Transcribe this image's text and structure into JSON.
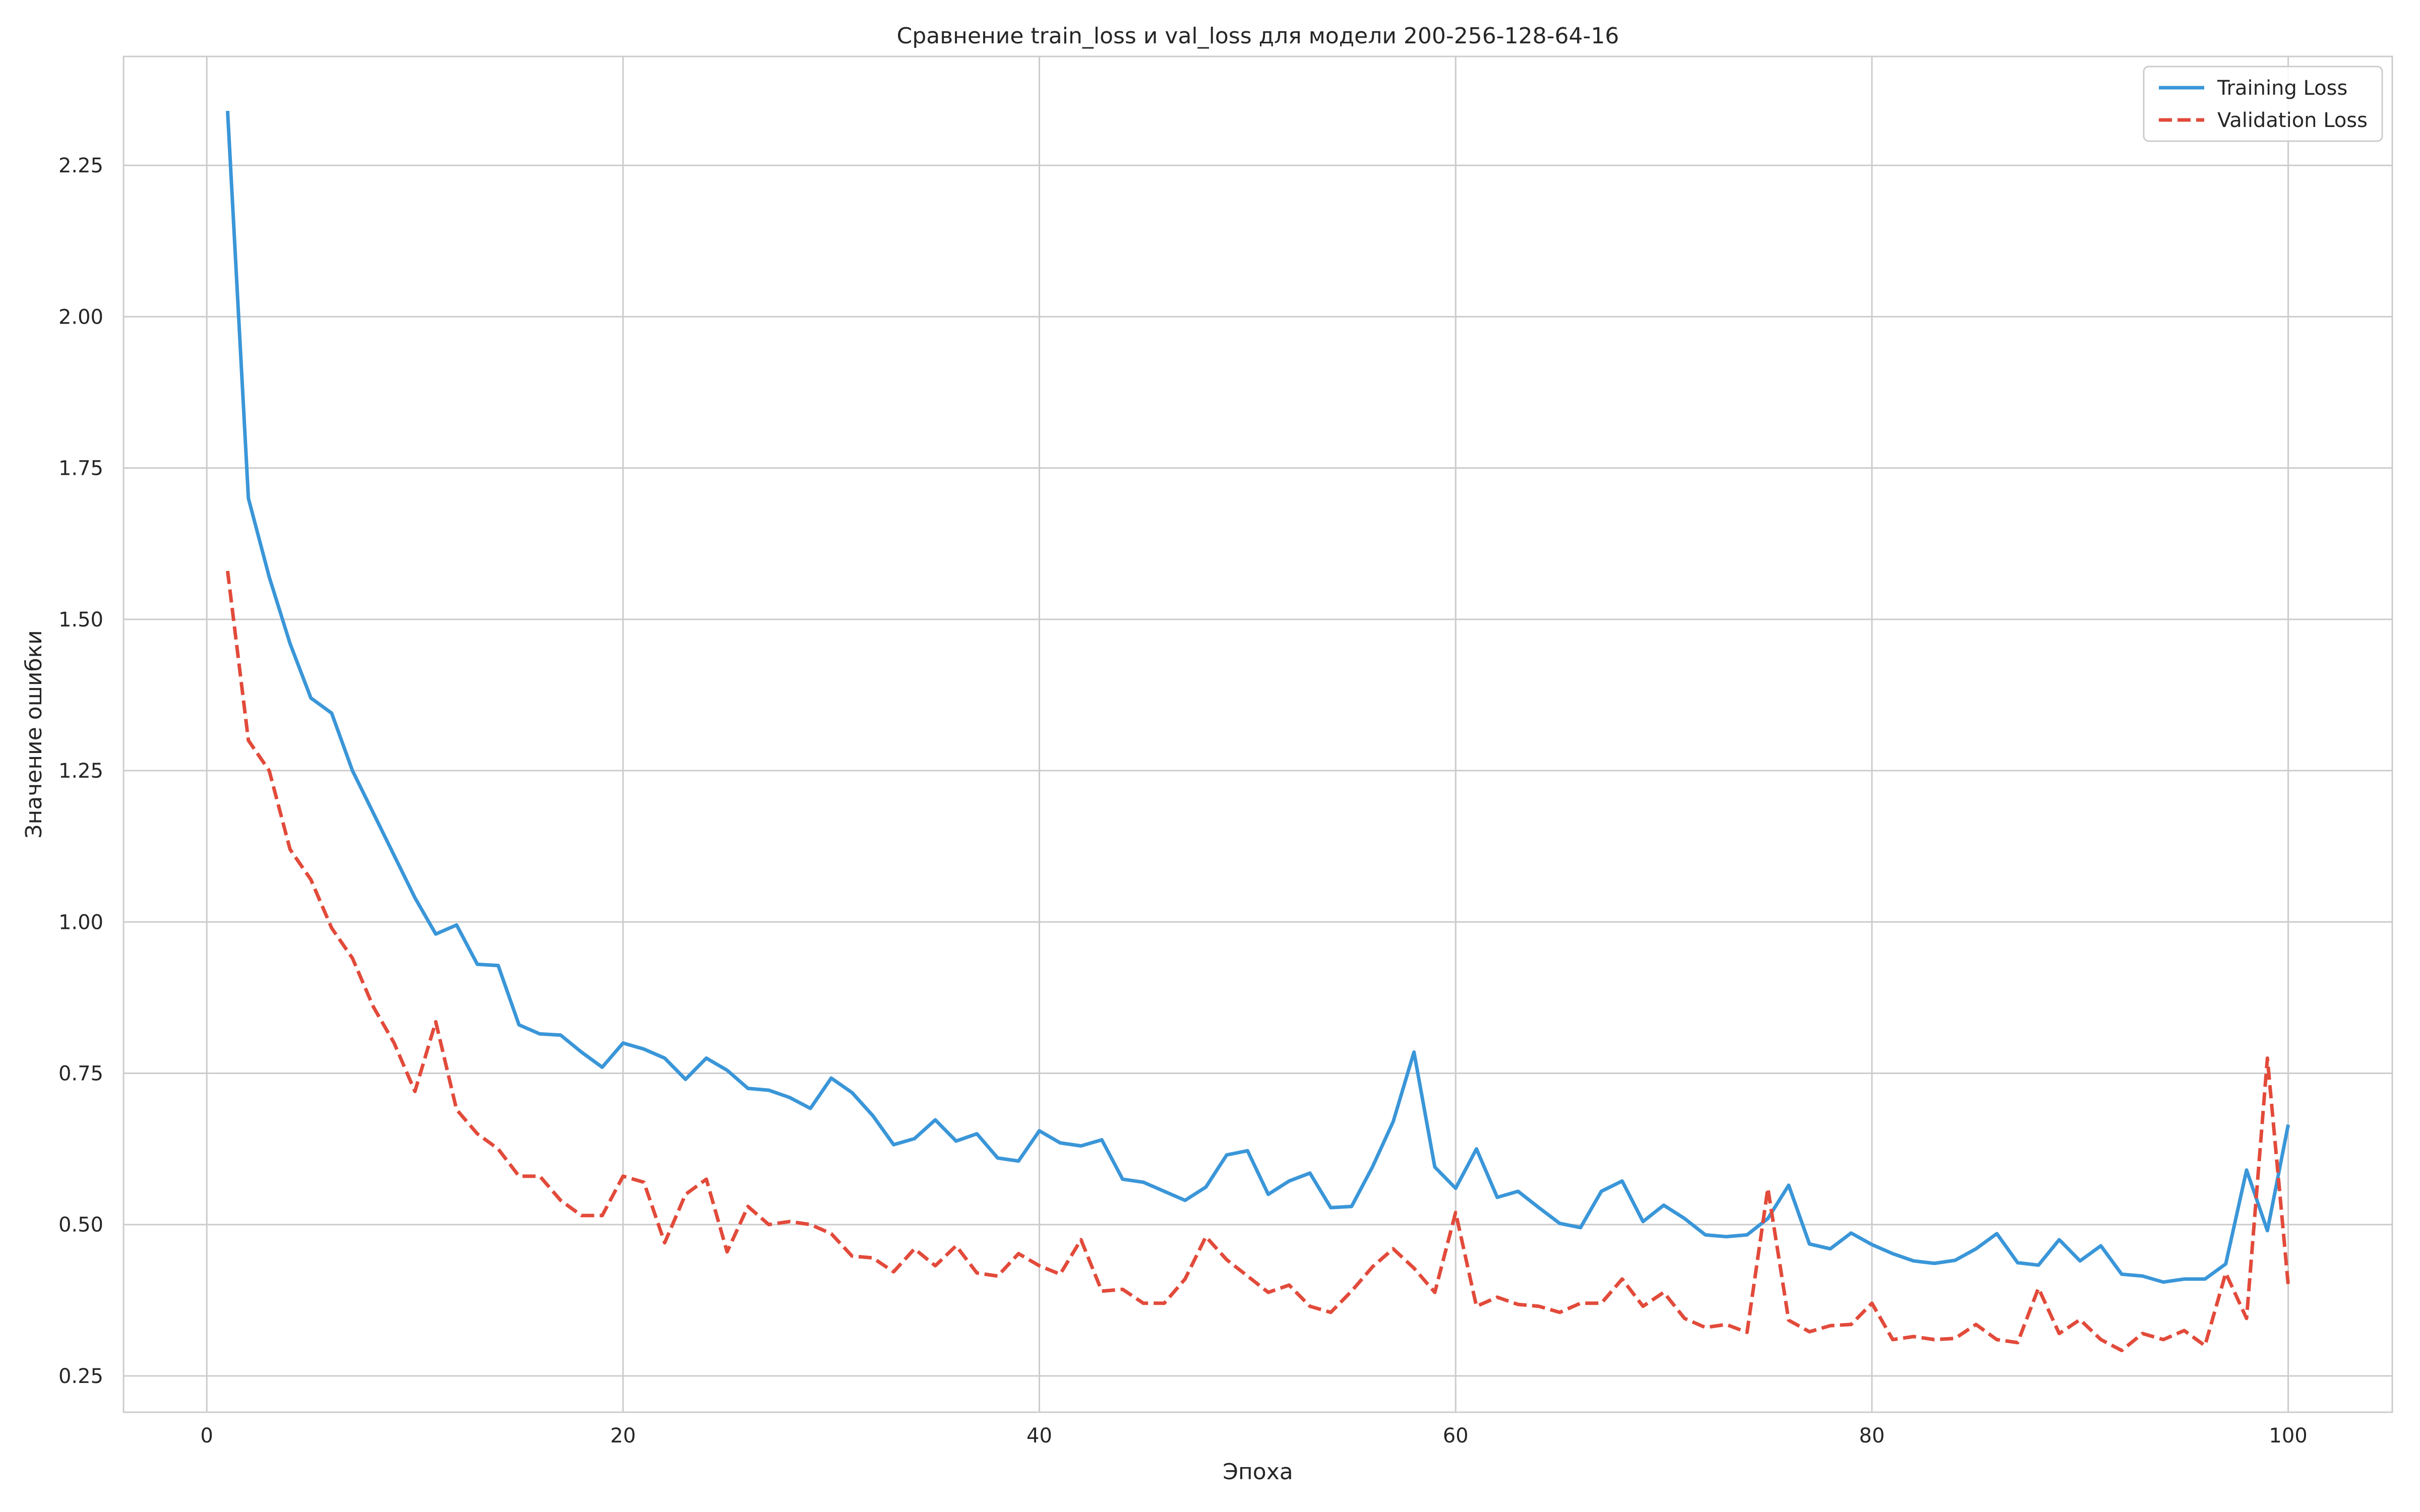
{
  "chart_data": {
    "type": "line",
    "title": "Сравнение train_loss и val_loss для модели 200-256-128-64-16",
    "xlabel": "Эпоха",
    "ylabel": "Значение ошибки",
    "xlim": [
      -4,
      105
    ],
    "ylim": [
      0.19,
      2.43
    ],
    "xticks": [
      0,
      20,
      40,
      60,
      80,
      100
    ],
    "yticks": [
      0.25,
      0.5,
      0.75,
      1.0,
      1.25,
      1.5,
      1.75,
      2.0,
      2.25
    ],
    "xtick_labels": [
      "0",
      "20",
      "40",
      "60",
      "80",
      "100"
    ],
    "ytick_labels": [
      "0.25",
      "0.50",
      "0.75",
      "1.00",
      "1.25",
      "1.50",
      "1.75",
      "2.00",
      "2.25"
    ],
    "grid": true,
    "legend_position": "top-right",
    "x": [
      1,
      2,
      3,
      4,
      5,
      6,
      7,
      8,
      9,
      10,
      11,
      12,
      13,
      14,
      15,
      16,
      17,
      18,
      19,
      20,
      21,
      22,
      23,
      24,
      25,
      26,
      27,
      28,
      29,
      30,
      31,
      32,
      33,
      34,
      35,
      36,
      37,
      38,
      39,
      40,
      41,
      42,
      43,
      44,
      45,
      46,
      47,
      48,
      49,
      50,
      51,
      52,
      53,
      54,
      55,
      56,
      57,
      58,
      59,
      60,
      61,
      62,
      63,
      64,
      65,
      66,
      67,
      68,
      69,
      70,
      71,
      72,
      73,
      74,
      75,
      76,
      77,
      78,
      79,
      80,
      81,
      82,
      83,
      84,
      85,
      86,
      87,
      88,
      89,
      90,
      91,
      92,
      93,
      94,
      95,
      96,
      97,
      98,
      99,
      100
    ],
    "series": [
      {
        "name": "Training Loss",
        "color": "#3a96d8",
        "dash": "solid",
        "values": [
          2.34,
          1.7,
          1.57,
          1.46,
          1.37,
          1.345,
          1.25,
          1.18,
          1.11,
          1.04,
          0.98,
          0.995,
          0.93,
          0.928,
          0.83,
          0.815,
          0.813,
          0.785,
          0.76,
          0.8,
          0.79,
          0.775,
          0.74,
          0.775,
          0.755,
          0.725,
          0.722,
          0.71,
          0.692,
          0.742,
          0.718,
          0.68,
          0.632,
          0.642,
          0.673,
          0.638,
          0.65,
          0.61,
          0.605,
          0.655,
          0.635,
          0.63,
          0.64,
          0.575,
          0.57,
          0.555,
          0.54,
          0.562,
          0.615,
          0.622,
          0.55,
          0.572,
          0.585,
          0.528,
          0.53,
          0.595,
          0.67,
          0.785,
          0.595,
          0.56,
          0.625,
          0.545,
          0.555,
          0.528,
          0.502,
          0.495,
          0.555,
          0.572,
          0.505,
          0.532,
          0.51,
          0.483,
          0.48,
          0.483,
          0.51,
          0.565,
          0.468,
          0.46,
          0.486,
          0.467,
          0.452,
          0.44,
          0.436,
          0.441,
          0.46,
          0.485,
          0.437,
          0.433,
          0.475,
          0.44,
          0.465,
          0.418,
          0.415,
          0.405,
          0.41,
          0.41,
          0.435,
          0.59,
          0.49,
          0.665
        ]
      },
      {
        "name": "Validation Loss",
        "color": "#e24a3a",
        "dash": "dashed",
        "values": [
          1.58,
          1.3,
          1.25,
          1.12,
          1.07,
          0.99,
          0.94,
          0.86,
          0.8,
          0.72,
          0.835,
          0.69,
          0.65,
          0.625,
          0.58,
          0.58,
          0.54,
          0.515,
          0.515,
          0.58,
          0.57,
          0.47,
          0.55,
          0.575,
          0.455,
          0.53,
          0.5,
          0.505,
          0.5,
          0.485,
          0.448,
          0.445,
          0.422,
          0.46,
          0.432,
          0.465,
          0.42,
          0.415,
          0.452,
          0.432,
          0.418,
          0.475,
          0.39,
          0.393,
          0.37,
          0.37,
          0.41,
          0.48,
          0.442,
          0.415,
          0.388,
          0.4,
          0.365,
          0.355,
          0.39,
          0.43,
          0.46,
          0.428,
          0.388,
          0.52,
          0.365,
          0.38,
          0.368,
          0.365,
          0.355,
          0.37,
          0.37,
          0.41,
          0.365,
          0.388,
          0.345,
          0.33,
          0.335,
          0.322,
          0.56,
          0.342,
          0.323,
          0.333,
          0.335,
          0.37,
          0.31,
          0.315,
          0.31,
          0.312,
          0.335,
          0.31,
          0.305,
          0.395,
          0.32,
          0.343,
          0.31,
          0.292,
          0.32,
          0.31,
          0.325,
          0.3,
          0.42,
          0.345,
          0.775,
          0.4
        ]
      }
    ]
  }
}
